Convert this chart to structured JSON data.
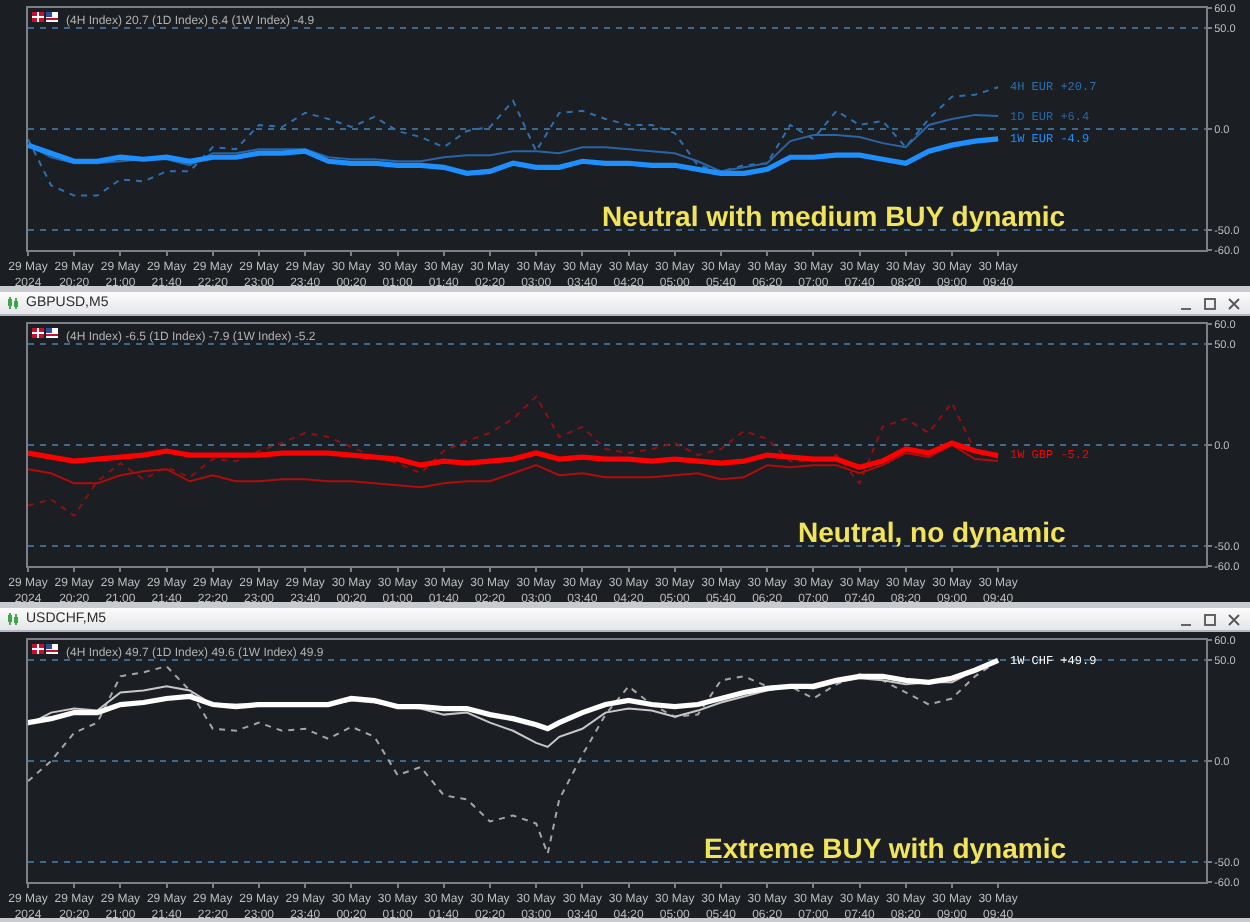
{
  "chart_data": [
    {
      "type": "line",
      "subtitle": "(4H Index) 20.7 (1D Index) 6.4 (1W Index) -4.9",
      "annotations": [
        "Neutral with medium BUY dynamic"
      ],
      "x": [
        "2024-05-29T19:40",
        "2024-05-29T20:00",
        "2024-05-29T20:20",
        "2024-05-29T20:40",
        "2024-05-29T21:00",
        "2024-05-29T21:20",
        "2024-05-29T21:40",
        "2024-05-29T22:00",
        "2024-05-29T22:20",
        "2024-05-29T22:40",
        "2024-05-29T23:00",
        "2024-05-29T23:20",
        "2024-05-29T23:40",
        "2024-05-30T00:00",
        "2024-05-30T00:20",
        "2024-05-30T00:40",
        "2024-05-30T01:00",
        "2024-05-30T01:20",
        "2024-05-30T01:40",
        "2024-05-30T02:00",
        "2024-05-30T02:20",
        "2024-05-30T02:40",
        "2024-05-30T03:00",
        "2024-05-30T03:20",
        "2024-05-30T03:40",
        "2024-05-30T04:00",
        "2024-05-30T04:20",
        "2024-05-30T04:40",
        "2024-05-30T05:00",
        "2024-05-30T05:20",
        "2024-05-30T05:40",
        "2024-05-30T06:00",
        "2024-05-30T06:20",
        "2024-05-30T06:40",
        "2024-05-30T07:00",
        "2024-05-30T07:20",
        "2024-05-30T07:40",
        "2024-05-30T08:00",
        "2024-05-30T08:20",
        "2024-05-30T08:40",
        "2024-05-30T09:00",
        "2024-05-30T09:20",
        "2024-05-30T09:40"
      ],
      "xlim": [
        "2024-05-29T19:40",
        "2024-05-30T12:40"
      ],
      "xticks": [
        {
          "value": "2024-05-29T19:40",
          "label": "29 May 2024"
        },
        {
          "value": "2024-05-29T20:20",
          "label": "29 May 20:20"
        },
        {
          "value": "2024-05-29T21:00",
          "label": "29 May 21:00"
        },
        {
          "value": "2024-05-29T21:40",
          "label": "29 May 21:40"
        },
        {
          "value": "2024-05-29T22:20",
          "label": "29 May 22:20"
        },
        {
          "value": "2024-05-29T23:00",
          "label": "29 May 23:00"
        },
        {
          "value": "2024-05-29T23:40",
          "label": "29 May 23:40"
        },
        {
          "value": "2024-05-30T00:20",
          "label": "30 May 00:20"
        },
        {
          "value": "2024-05-30T01:00",
          "label": "30 May 01:00"
        },
        {
          "value": "2024-05-30T01:40",
          "label": "30 May 01:40"
        },
        {
          "value": "2024-05-30T02:20",
          "label": "30 May 02:20"
        },
        {
          "value": "2024-05-30T03:00",
          "label": "30 May 03:00"
        },
        {
          "value": "2024-05-30T03:40",
          "label": "30 May 03:40"
        },
        {
          "value": "2024-05-30T04:20",
          "label": "30 May 04:20"
        },
        {
          "value": "2024-05-30T05:00",
          "label": "30 May 05:00"
        },
        {
          "value": "2024-05-30T05:40",
          "label": "30 May 05:40"
        },
        {
          "value": "2024-05-30T06:20",
          "label": "30 May 06:20"
        },
        {
          "value": "2024-05-30T07:00",
          "label": "30 May 07:00"
        },
        {
          "value": "2024-05-30T07:40",
          "label": "30 May 07:40"
        },
        {
          "value": "2024-05-30T08:20",
          "label": "30 May 08:20"
        },
        {
          "value": "2024-05-30T09:00",
          "label": "30 May 09:00"
        },
        {
          "value": "2024-05-30T09:40",
          "label": "30 May 09:40"
        }
      ],
      "ylim": [
        -60,
        60
      ],
      "yticks": [
        {
          "value": 60,
          "label": "60.0"
        },
        {
          "value": 50,
          "label": "50.0"
        },
        {
          "value": 0,
          "label": "0.0"
        },
        {
          "value": -50,
          "label": "-50.0"
        },
        {
          "value": -60,
          "label": "-60.0"
        }
      ],
      "grid": "y",
      "series": [
        {
          "name": "4H EUR +20.7",
          "color": "#2e6fb0",
          "line_style": "dotted",
          "values": [
            -5,
            -28,
            -33,
            -33,
            -25,
            -26,
            -21,
            -21,
            -9,
            -10,
            2,
            1,
            8,
            5,
            1,
            6,
            -1,
            -4,
            -9,
            -1,
            1,
            14,
            -11,
            8,
            9,
            5,
            2,
            2,
            -2,
            -18,
            -21,
            -18,
            -17,
            2,
            -5,
            9,
            2,
            4,
            -9,
            5,
            16,
            17,
            20.7
          ]
        },
        {
          "name": "1D EUR +6.4",
          "color": "#2a64a3",
          "line_style": "solid",
          "values": [
            -8,
            -14,
            -17,
            -17,
            -16,
            -15,
            -15,
            -18,
            -12,
            -12,
            -10,
            -10,
            -10,
            -14,
            -15,
            -15,
            -16,
            -16,
            -14,
            -13,
            -13,
            -11,
            -11,
            -12,
            -9,
            -9,
            -10,
            -11,
            -12,
            -16,
            -21,
            -19,
            -17,
            -6,
            -3,
            -3,
            -4,
            -7,
            -9,
            2,
            5,
            7,
            6.4
          ]
        },
        {
          "name": "1W EUR -4.9",
          "color": "#1e8fff",
          "line_style": "solid",
          "values": [
            -8,
            -12,
            -16,
            -16,
            -14,
            -15,
            -14,
            -16,
            -14,
            -14,
            -12,
            -12,
            -11,
            -16,
            -17,
            -17,
            -18,
            -18,
            -19,
            -22,
            -21,
            -17,
            -19,
            -19,
            -16,
            -17,
            -17,
            -18,
            -18,
            -20,
            -22,
            -22,
            -20,
            -14,
            -14,
            -13,
            -13,
            -15,
            -17,
            -11,
            -8,
            -6,
            -4.9
          ]
        }
      ]
    },
    {
      "type": "line",
      "title": "GBPUSD,M5",
      "subtitle": "(4H Index) -6.5 (1D Index) -7.9 (1W Index) -5.2",
      "annotations": [
        "Neutral, no dynamic"
      ],
      "x": [
        "2024-05-29T19:40",
        "2024-05-29T20:00",
        "2024-05-29T20:20",
        "2024-05-29T20:40",
        "2024-05-29T21:00",
        "2024-05-29T21:20",
        "2024-05-29T21:40",
        "2024-05-29T22:00",
        "2024-05-29T22:20",
        "2024-05-29T22:40",
        "2024-05-29T23:00",
        "2024-05-29T23:20",
        "2024-05-29T23:40",
        "2024-05-30T00:00",
        "2024-05-30T00:20",
        "2024-05-30T00:40",
        "2024-05-30T01:00",
        "2024-05-30T01:20",
        "2024-05-30T01:40",
        "2024-05-30T02:00",
        "2024-05-30T02:20",
        "2024-05-30T02:40",
        "2024-05-30T03:00",
        "2024-05-30T03:20",
        "2024-05-30T03:40",
        "2024-05-30T04:00",
        "2024-05-30T04:20",
        "2024-05-30T04:40",
        "2024-05-30T05:00",
        "2024-05-30T05:20",
        "2024-05-30T05:40",
        "2024-05-30T06:00",
        "2024-05-30T06:20",
        "2024-05-30T06:40",
        "2024-05-30T07:00",
        "2024-05-30T07:20",
        "2024-05-30T07:40",
        "2024-05-30T08:00",
        "2024-05-30T08:20",
        "2024-05-30T08:40",
        "2024-05-30T09:00",
        "2024-05-30T09:20",
        "2024-05-30T09:40"
      ],
      "xlim": [
        "2024-05-29T19:40",
        "2024-05-30T12:40"
      ],
      "xticks": [
        {
          "value": "2024-05-29T19:40",
          "label": "29 May 2024"
        },
        {
          "value": "2024-05-29T20:20",
          "label": "29 May 20:20"
        },
        {
          "value": "2024-05-29T21:00",
          "label": "29 May 21:00"
        },
        {
          "value": "2024-05-29T21:40",
          "label": "29 May 21:40"
        },
        {
          "value": "2024-05-29T22:20",
          "label": "29 May 22:20"
        },
        {
          "value": "2024-05-29T23:00",
          "label": "29 May 23:00"
        },
        {
          "value": "2024-05-29T23:40",
          "label": "29 May 23:40"
        },
        {
          "value": "2024-05-30T00:20",
          "label": "30 May 00:20"
        },
        {
          "value": "2024-05-30T01:00",
          "label": "30 May 01:00"
        },
        {
          "value": "2024-05-30T01:40",
          "label": "30 May 01:40"
        },
        {
          "value": "2024-05-30T02:20",
          "label": "30 May 02:20"
        },
        {
          "value": "2024-05-30T03:00",
          "label": "30 May 03:00"
        },
        {
          "value": "2024-05-30T03:40",
          "label": "30 May 03:40"
        },
        {
          "value": "2024-05-30T04:20",
          "label": "30 May 04:20"
        },
        {
          "value": "2024-05-30T05:00",
          "label": "30 May 05:00"
        },
        {
          "value": "2024-05-30T05:40",
          "label": "30 May 05:40"
        },
        {
          "value": "2024-05-30T06:20",
          "label": "30 May 06:20"
        },
        {
          "value": "2024-05-30T07:00",
          "label": "30 May 07:00"
        },
        {
          "value": "2024-05-30T07:40",
          "label": "30 May 07:40"
        },
        {
          "value": "2024-05-30T08:20",
          "label": "30 May 08:20"
        },
        {
          "value": "2024-05-30T09:00",
          "label": "30 May 09:00"
        },
        {
          "value": "2024-05-30T09:40",
          "label": "30 May 09:40"
        }
      ],
      "ylim": [
        -60,
        60
      ],
      "yticks": [
        {
          "value": 60,
          "label": "60.0"
        },
        {
          "value": 50,
          "label": "50.0"
        },
        {
          "value": 0,
          "label": "0.0"
        },
        {
          "value": -50,
          "label": "-50.0"
        },
        {
          "value": -60,
          "label": "-60.0"
        }
      ],
      "grid": "y",
      "series": [
        {
          "color": "#8f1010",
          "line_style": "dotted",
          "values": [
            -30,
            -27,
            -35,
            -18,
            -9,
            -17,
            -11,
            -16,
            -7,
            -8,
            -3,
            1,
            6,
            4,
            -1,
            -6,
            -9,
            -14,
            -3,
            2,
            6,
            13,
            24,
            4,
            9,
            -2,
            -4,
            -2,
            1,
            -5,
            -2,
            7,
            3,
            -8,
            -8,
            -5,
            -19,
            9,
            13,
            6,
            21,
            -3,
            -6.5
          ]
        },
        {
          "color": "#b00c0c",
          "line_style": "solid",
          "values": [
            -12,
            -14,
            -19,
            -19,
            -15,
            -13,
            -12,
            -18,
            -15,
            -18,
            -18,
            -17,
            -17,
            -18,
            -18,
            -19,
            -20,
            -21,
            -19,
            -18,
            -18,
            -14,
            -10,
            -15,
            -14,
            -16,
            -16,
            -16,
            -15,
            -14,
            -17,
            -16,
            -10,
            -11,
            -10,
            -10,
            -14,
            -10,
            -4,
            -6,
            0,
            -7,
            -7.9
          ]
        },
        {
          "name": "1W GBP -5.2",
          "color": "#ff0000",
          "line_style": "solid",
          "values": [
            -4,
            -6,
            -8,
            -7,
            -6,
            -5,
            -3,
            -5,
            -5,
            -5,
            -5,
            -4,
            -4,
            -4,
            -5,
            -6,
            -7,
            -10,
            -8,
            -9,
            -8,
            -7,
            -4,
            -7,
            -6,
            -7,
            -7,
            -8,
            -7,
            -8,
            -9,
            -8,
            -5,
            -6,
            -7,
            -7,
            -11,
            -8,
            -2,
            -4,
            1,
            -3,
            -5.2
          ]
        }
      ]
    },
    {
      "type": "line",
      "title": "USDCHF,M5",
      "subtitle": "(4H Index) 49.7 (1D Index) 49.6 (1W Index) 49.9",
      "annotations": [
        "Extreme BUY with dynamic"
      ],
      "x": [
        "2024-05-29T19:40",
        "2024-05-29T20:00",
        "2024-05-29T20:20",
        "2024-05-29T20:40",
        "2024-05-29T21:00",
        "2024-05-29T21:20",
        "2024-05-29T21:40",
        "2024-05-29T22:00",
        "2024-05-29T22:20",
        "2024-05-29T22:40",
        "2024-05-29T23:00",
        "2024-05-29T23:20",
        "2024-05-29T23:40",
        "2024-05-30T00:00",
        "2024-05-30T00:20",
        "2024-05-30T00:40",
        "2024-05-30T01:00",
        "2024-05-30T01:20",
        "2024-05-30T01:40",
        "2024-05-30T02:00",
        "2024-05-30T02:20",
        "2024-05-30T02:40",
        "2024-05-30T03:00",
        "2024-05-30T03:10",
        "2024-05-30T03:20",
        "2024-05-30T03:40",
        "2024-05-30T04:00",
        "2024-05-30T04:20",
        "2024-05-30T04:40",
        "2024-05-30T05:00",
        "2024-05-30T05:20",
        "2024-05-30T05:40",
        "2024-05-30T06:00",
        "2024-05-30T06:20",
        "2024-05-30T06:40",
        "2024-05-30T07:00",
        "2024-05-30T07:20",
        "2024-05-30T07:40",
        "2024-05-30T08:00",
        "2024-05-30T08:20",
        "2024-05-30T08:40",
        "2024-05-30T09:00",
        "2024-05-30T09:20",
        "2024-05-30T09:40"
      ],
      "xlim": [
        "2024-05-29T19:40",
        "2024-05-30T12:40"
      ],
      "xticks": [
        {
          "value": "2024-05-29T19:40",
          "label": "29 May 2024"
        },
        {
          "value": "2024-05-29T20:20",
          "label": "29 May 20:20"
        },
        {
          "value": "2024-05-29T21:00",
          "label": "29 May 21:00"
        },
        {
          "value": "2024-05-29T21:40",
          "label": "29 May 21:40"
        },
        {
          "value": "2024-05-29T22:20",
          "label": "29 May 22:20"
        },
        {
          "value": "2024-05-29T23:00",
          "label": "29 May 23:00"
        },
        {
          "value": "2024-05-29T23:40",
          "label": "29 May 23:40"
        },
        {
          "value": "2024-05-30T00:20",
          "label": "30 May 00:20"
        },
        {
          "value": "2024-05-30T01:00",
          "label": "30 May 01:00"
        },
        {
          "value": "2024-05-30T01:40",
          "label": "30 May 01:40"
        },
        {
          "value": "2024-05-30T02:20",
          "label": "30 May 02:20"
        },
        {
          "value": "2024-05-30T03:00",
          "label": "30 May 03:00"
        },
        {
          "value": "2024-05-30T03:40",
          "label": "30 May 03:40"
        },
        {
          "value": "2024-05-30T04:20",
          "label": "30 May 04:20"
        },
        {
          "value": "2024-05-30T05:00",
          "label": "30 May 05:00"
        },
        {
          "value": "2024-05-30T05:40",
          "label": "30 May 05:40"
        },
        {
          "value": "2024-05-30T06:20",
          "label": "30 May 06:20"
        },
        {
          "value": "2024-05-30T07:00",
          "label": "30 May 07:00"
        },
        {
          "value": "2024-05-30T07:40",
          "label": "30 May 07:40"
        },
        {
          "value": "2024-05-30T08:20",
          "label": "30 May 08:20"
        },
        {
          "value": "2024-05-30T09:00",
          "label": "30 May 09:00"
        },
        {
          "value": "2024-05-30T09:40",
          "label": "30 May 09:40"
        }
      ],
      "ylim": [
        -60,
        60
      ],
      "yticks": [
        {
          "value": 60,
          "label": "60.0"
        },
        {
          "value": 50,
          "label": "50.0"
        },
        {
          "value": 0,
          "label": "0.0"
        },
        {
          "value": -50,
          "label": "-50.0"
        },
        {
          "value": -60,
          "label": "-60.0"
        }
      ],
      "grid": "y",
      "series": [
        {
          "color": "#a6a6a6",
          "line_style": "dotted",
          "values": [
            -10,
            0,
            14,
            19,
            42,
            44,
            47,
            35,
            16,
            15,
            19,
            15,
            16,
            11,
            17,
            12,
            -7,
            -3,
            -17,
            -19,
            -30,
            -27,
            -31,
            -46,
            -19,
            3,
            23,
            37,
            28,
            22,
            23,
            40,
            42,
            37,
            37,
            31,
            38,
            43,
            40,
            34,
            28,
            31,
            42,
            49.7
          ]
        },
        {
          "color": "#c8c8c8",
          "line_style": "solid",
          "values": [
            18,
            24,
            26,
            25,
            34,
            35,
            37,
            35,
            28,
            28,
            28,
            28,
            28,
            28,
            30,
            29,
            27,
            26,
            23,
            24,
            19,
            15,
            9,
            7,
            12,
            16,
            24,
            26,
            25,
            22,
            25,
            29,
            32,
            35,
            37,
            36,
            39,
            41,
            40,
            38,
            39,
            39,
            45,
            49.6
          ]
        },
        {
          "name": "1W CHF +49.9",
          "color": "#ffffff",
          "line_style": "solid",
          "values": [
            19,
            21,
            24,
            24,
            28,
            29,
            31,
            32,
            28,
            27,
            28,
            28,
            28,
            28,
            31,
            30,
            27,
            27,
            26,
            26,
            23,
            21,
            18,
            16,
            19,
            24,
            28,
            30,
            28,
            27,
            28,
            31,
            34,
            36,
            37,
            37,
            40,
            42,
            42,
            40,
            39,
            41,
            45,
            49.9
          ]
        }
      ]
    }
  ]
}
